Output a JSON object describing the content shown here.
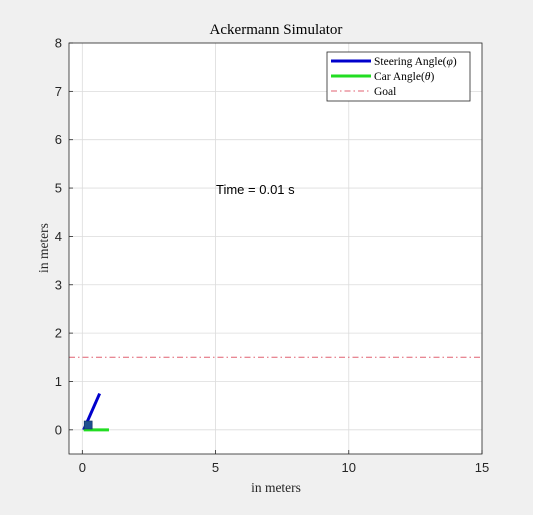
{
  "chart_data": {
    "type": "line",
    "title": "Ackermann Simulator",
    "xlabel": "in meters",
    "ylabel": "in meters",
    "xlim": [
      -0.5,
      15
    ],
    "ylim": [
      -0.5,
      8
    ],
    "xticks": [
      0,
      5,
      10,
      15
    ],
    "yticks": [
      0,
      1,
      2,
      3,
      4,
      5,
      6,
      7,
      8
    ],
    "grid": true,
    "legend_position": "top-right",
    "annotation": {
      "text": "Time = 0.01 s",
      "x": 5,
      "y": 5
    },
    "series": [
      {
        "name": "Steering Angle($\\phi$)",
        "style": "solid",
        "color": "#0000cc",
        "x": [
          0.05,
          0.65
        ],
        "y": [
          0.0,
          0.75
        ]
      },
      {
        "name": "Car Angle($\\theta$)",
        "style": "solid",
        "color": "#22dd22",
        "x": [
          0.05,
          1.0
        ],
        "y": [
          0.0,
          0.0
        ]
      },
      {
        "name": "Goal",
        "style": "dashdot",
        "color": "#e06070",
        "x": [
          -0.5,
          15
        ],
        "y": [
          1.5,
          1.5
        ]
      }
    ],
    "car_marker": {
      "x": 0.22,
      "y": 0.1,
      "color": "#1f4f8f"
    }
  },
  "legend": {
    "steering": {
      "label_main": "Steering Angle(",
      "symbol": "φ",
      "label_end": ")"
    },
    "car": {
      "label_main": "Car Angle(",
      "symbol": "θ",
      "label_end": ")"
    },
    "goal": {
      "label": "Goal"
    }
  }
}
